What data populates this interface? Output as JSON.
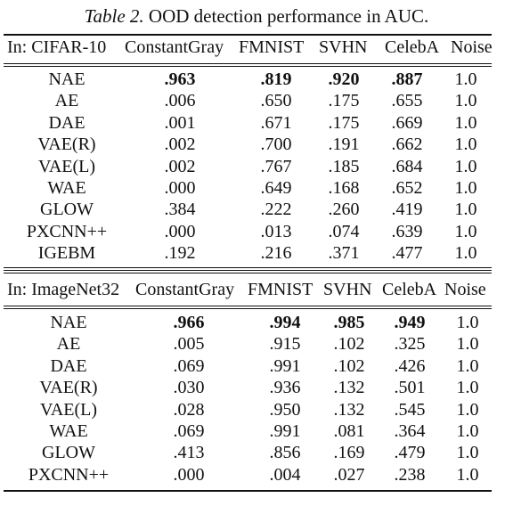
{
  "caption": {
    "label": "Table 2.",
    "text": "OOD detection performance in AUC."
  },
  "sections": [
    {
      "header": [
        "In: CIFAR-10",
        "ConstantGray",
        "FMNIST",
        "SVHN",
        "CelebA",
        "Noise"
      ],
      "rows": [
        {
          "model": "NAE",
          "constantgray": ".963",
          "fmnist": ".819",
          "svhn": ".920",
          "celeba": ".887",
          "noise": "1.0",
          "bold": true
        },
        {
          "model": "AE",
          "constantgray": ".006",
          "fmnist": ".650",
          "svhn": ".175",
          "celeba": ".655",
          "noise": "1.0"
        },
        {
          "model": "DAE",
          "constantgray": ".001",
          "fmnist": ".671",
          "svhn": ".175",
          "celeba": ".669",
          "noise": "1.0"
        },
        {
          "model": "VAE(R)",
          "constantgray": ".002",
          "fmnist": ".700",
          "svhn": ".191",
          "celeba": ".662",
          "noise": "1.0"
        },
        {
          "model": "VAE(L)",
          "constantgray": ".002",
          "fmnist": ".767",
          "svhn": ".185",
          "celeba": ".684",
          "noise": "1.0"
        },
        {
          "model": "WAE",
          "constantgray": ".000",
          "fmnist": ".649",
          "svhn": ".168",
          "celeba": ".652",
          "noise": "1.0"
        },
        {
          "model": "GLOW",
          "constantgray": ".384",
          "fmnist": ".222",
          "svhn": ".260",
          "celeba": ".419",
          "noise": "1.0"
        },
        {
          "model": "PXCNN++",
          "constantgray": ".000",
          "fmnist": ".013",
          "svhn": ".074",
          "celeba": ".639",
          "noise": "1.0"
        },
        {
          "model": "IGEBM",
          "constantgray": ".192",
          "fmnist": ".216",
          "svhn": ".371",
          "celeba": ".477",
          "noise": "1.0"
        }
      ]
    },
    {
      "header": [
        "In: ImageNet32",
        "ConstantGray",
        "FMNIST",
        "SVHN",
        "CelebA",
        "Noise"
      ],
      "rows": [
        {
          "model": "NAE",
          "constantgray": ".966",
          "fmnist": ".994",
          "svhn": ".985",
          "celeba": ".949",
          "noise": "1.0",
          "bold": true
        },
        {
          "model": "AE",
          "constantgray": ".005",
          "fmnist": ".915",
          "svhn": ".102",
          "celeba": ".325",
          "noise": "1.0"
        },
        {
          "model": "DAE",
          "constantgray": ".069",
          "fmnist": ".991",
          "svhn": ".102",
          "celeba": ".426",
          "noise": "1.0"
        },
        {
          "model": "VAE(R)",
          "constantgray": ".030",
          "fmnist": ".936",
          "svhn": ".132",
          "celeba": ".501",
          "noise": "1.0"
        },
        {
          "model": "VAE(L)",
          "constantgray": ".028",
          "fmnist": ".950",
          "svhn": ".132",
          "celeba": ".545",
          "noise": "1.0"
        },
        {
          "model": "WAE",
          "constantgray": ".069",
          "fmnist": ".991",
          "svhn": ".081",
          "celeba": ".364",
          "noise": "1.0"
        },
        {
          "model": "GLOW",
          "constantgray": ".413",
          "fmnist": ".856",
          "svhn": ".169",
          "celeba": ".479",
          "noise": "1.0"
        },
        {
          "model": "PXCNN++",
          "constantgray": ".000",
          "fmnist": ".004",
          "svhn": ".027",
          "celeba": ".238",
          "noise": "1.0"
        }
      ]
    }
  ]
}
